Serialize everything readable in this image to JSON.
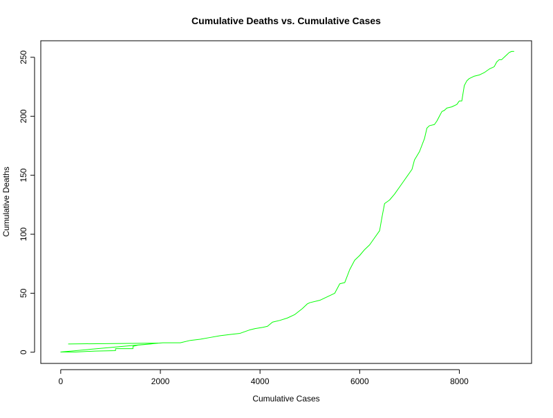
{
  "chart_data": {
    "type": "line",
    "title": "Cumulative Deaths vs. Cumulative Cases",
    "xlabel": "Cumulative Cases",
    "ylabel": "Cumulative Deaths",
    "xlim": [
      -400,
      9450
    ],
    "ylim": [
      -9.5,
      264
    ],
    "xticks": [
      0,
      2000,
      4000,
      6000,
      8000
    ],
    "yticks": [
      0,
      50,
      100,
      150,
      200,
      250
    ],
    "grid": false,
    "series": [
      {
        "color": "#00ff00",
        "points": [
          [
            150,
            7
          ],
          [
            1950,
            7.7
          ],
          [
            1800,
            7
          ],
          [
            1550,
            6
          ],
          [
            1450,
            5
          ],
          [
            1450,
            3
          ],
          [
            1300,
            3
          ],
          [
            1100,
            3
          ],
          [
            1100,
            1.3
          ],
          [
            700,
            1
          ],
          [
            300,
            0.2
          ],
          [
            0,
            0.2
          ],
          [
            2050,
            8
          ],
          [
            2400,
            8
          ],
          [
            2600,
            10
          ],
          [
            2800,
            11
          ],
          [
            3000,
            12.5
          ],
          [
            3200,
            14
          ],
          [
            3400,
            15
          ],
          [
            3600,
            16
          ],
          [
            3800,
            19
          ],
          [
            3900,
            20
          ],
          [
            4050,
            21
          ],
          [
            4150,
            22
          ],
          [
            4250,
            25.5
          ],
          [
            4400,
            27
          ],
          [
            4550,
            29
          ],
          [
            4700,
            32
          ],
          [
            4850,
            37
          ],
          [
            4950,
            41
          ],
          [
            5000,
            42
          ],
          [
            5200,
            44
          ],
          [
            5350,
            47
          ],
          [
            5500,
            50
          ],
          [
            5600,
            58
          ],
          [
            5700,
            59
          ],
          [
            5800,
            70
          ],
          [
            5900,
            78
          ],
          [
            6000,
            82
          ],
          [
            6100,
            87
          ],
          [
            6200,
            91
          ],
          [
            6300,
            97
          ],
          [
            6400,
            103
          ],
          [
            6450,
            115
          ],
          [
            6500,
            126
          ],
          [
            6600,
            129
          ],
          [
            6700,
            134
          ],
          [
            6800,
            140
          ],
          [
            6900,
            146
          ],
          [
            7000,
            152
          ],
          [
            7050,
            155
          ],
          [
            7100,
            163
          ],
          [
            7200,
            170
          ],
          [
            7300,
            181
          ],
          [
            7350,
            190
          ],
          [
            7400,
            192
          ],
          [
            7500,
            193
          ],
          [
            7550,
            196
          ],
          [
            7600,
            200
          ],
          [
            7650,
            204
          ],
          [
            7700,
            205
          ],
          [
            7750,
            207
          ],
          [
            7850,
            208
          ],
          [
            7950,
            210
          ],
          [
            8000,
            213
          ],
          [
            8050,
            213
          ],
          [
            8100,
            226
          ],
          [
            8150,
            230
          ],
          [
            8200,
            232
          ],
          [
            8300,
            234
          ],
          [
            8400,
            235
          ],
          [
            8500,
            237
          ],
          [
            8600,
            240
          ],
          [
            8700,
            242
          ],
          [
            8750,
            246
          ],
          [
            8800,
            248
          ],
          [
            8850,
            248
          ],
          [
            8900,
            250
          ],
          [
            8950,
            252
          ],
          [
            9000,
            254
          ],
          [
            9050,
            255
          ],
          [
            9100,
            255
          ]
        ]
      }
    ]
  }
}
